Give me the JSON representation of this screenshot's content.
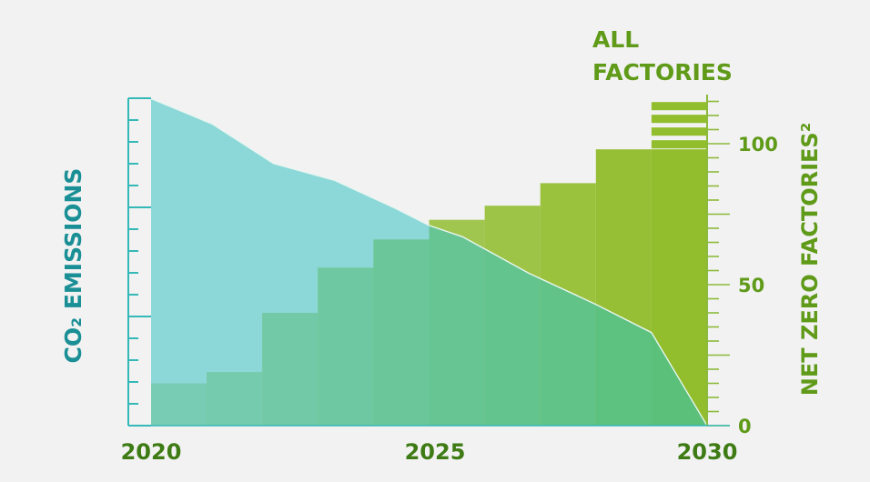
{
  "chart_data": {
    "type": "area",
    "x_ticks": [
      "2020",
      "2025",
      "2030"
    ],
    "xlim": [
      2020,
      2030
    ],
    "left_axis": {
      "label": "CO₂ EMISSIONS",
      "tick_labels": false
    },
    "right_axis": {
      "label": "NET ZERO FACTORIES²",
      "ticks": [
        "0",
        "50",
        "100"
      ],
      "ylim": [
        0,
        115
      ]
    },
    "all_factories_label": [
      "ALL",
      "FACTORIES"
    ],
    "emissions": {
      "x": [
        2020,
        2021.1,
        2022.2,
        2023.3,
        2024.4,
        2025,
        2025.6,
        2026.8,
        2028,
        2029,
        2030
      ],
      "y": [
        116,
        107,
        93,
        87,
        77,
        71,
        67,
        54,
        43,
        33,
        0
      ]
    },
    "net_zero_factories": {
      "x_start": [
        2020,
        2021,
        2022,
        2023,
        2024,
        2025,
        2026,
        2027,
        2028,
        2029
      ],
      "values": [
        15,
        19,
        40,
        56,
        66,
        73,
        78,
        86,
        98,
        98
      ]
    },
    "all_factories_stripes": 4,
    "colors": {
      "background": "#f2f2f2",
      "emissions_area": "#8cd8d8",
      "emissions_axis": "#35b8b8",
      "emissions_label": "#1a8f95",
      "factory_bar_lightest": "#78ccb4",
      "factory_bar_darkest": "#5ac07a",
      "factory_green_light": "#b4d27a",
      "factory_green_dark": "#92bd2c",
      "right_axis": "#8cba3a",
      "right_label": "#5f9a18",
      "x_label": "#3e7b14",
      "emissions_line": "#e8f5f0"
    }
  }
}
